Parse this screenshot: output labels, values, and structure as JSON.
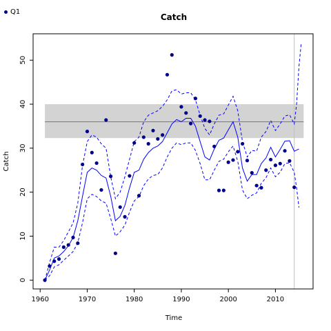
{
  "chart_data": {
    "type": "scatter",
    "title": "Catch",
    "xlabel": "Time",
    "ylabel": "Catch",
    "xlim": [
      1958.5,
      2018
    ],
    "ylim": [
      -2,
      56
    ],
    "x_ticks": [
      1960,
      1970,
      1980,
      1990,
      2000,
      2010
    ],
    "y_ticks": [
      0,
      10,
      20,
      30,
      40,
      50
    ],
    "grid": false,
    "legend": {
      "placement": "top-left",
      "entries": [
        "Q1"
      ]
    },
    "colors": {
      "points": "#00008b",
      "fit": "#0000ff",
      "band": "#d3d3d3",
      "mean_line": "#808080",
      "vline": "#c0c0c0"
    },
    "reference_band": {
      "x": [
        1961,
        2016
      ],
      "y_low": 32.3,
      "y_high": 40,
      "mean": 36
    },
    "vertical_line_x": 2014,
    "series": [
      {
        "name": "Q1",
        "style": "points",
        "points": [
          [
            1961,
            0
          ],
          [
            1962,
            3.2
          ],
          [
            1963,
            4.3
          ],
          [
            1964,
            4.8
          ],
          [
            1965,
            7.5
          ],
          [
            1966,
            8.0
          ],
          [
            1967,
            9.7
          ],
          [
            1968,
            8.4
          ],
          [
            1969,
            26.3
          ],
          [
            1970,
            33.8
          ],
          [
            1971,
            29.0
          ],
          [
            1972,
            26.6
          ],
          [
            1973,
            20.5
          ],
          [
            1974,
            36.4
          ],
          [
            1975,
            23.6
          ],
          [
            1976,
            6.1
          ],
          [
            1977,
            16.6
          ],
          [
            1978,
            14.4
          ],
          [
            1979,
            23.7
          ],
          [
            1980,
            31.2
          ],
          [
            1981,
            19.2
          ],
          [
            1982,
            32.5
          ],
          [
            1983,
            31.0
          ],
          [
            1984,
            34.0
          ],
          [
            1985,
            32.1
          ],
          [
            1986,
            33.0
          ],
          [
            1987,
            46.7
          ],
          [
            1988,
            51.2
          ],
          [
            1990,
            39.4
          ],
          [
            1991,
            38.0
          ],
          [
            1992,
            35.6
          ],
          [
            1993,
            41.3
          ],
          [
            1994,
            37.3
          ],
          [
            1995,
            36.4
          ],
          [
            1996,
            36.1
          ],
          [
            1997,
            30.4
          ],
          [
            1998,
            20.4
          ],
          [
            1999,
            20.4
          ],
          [
            2000,
            26.8
          ],
          [
            2001,
            27.3
          ],
          [
            2002,
            29.2
          ],
          [
            2003,
            31.0
          ],
          [
            2004,
            27.2
          ],
          [
            2005,
            24.4
          ],
          [
            2006,
            21.5
          ],
          [
            2007,
            21.0
          ],
          [
            2008,
            25.0
          ],
          [
            2009,
            27.4
          ],
          [
            2010,
            26.1
          ],
          [
            2011,
            26.5
          ],
          [
            2012,
            29.4
          ],
          [
            2013,
            27.1
          ],
          [
            2014,
            21.1
          ]
        ]
      },
      {
        "style": "fit",
        "points": [
          [
            1961,
            0
          ],
          [
            1962,
            2.3
          ],
          [
            1963,
            5.0
          ],
          [
            1964,
            5.5
          ],
          [
            1965,
            6.5
          ],
          [
            1966,
            7.8
          ],
          [
            1967,
            9.7
          ],
          [
            1968,
            13.5
          ],
          [
            1969,
            19.0
          ],
          [
            1970,
            24.5
          ],
          [
            1971,
            25.5
          ],
          [
            1972,
            25.0
          ],
          [
            1973,
            23.8
          ],
          [
            1974,
            23.2
          ],
          [
            1975,
            19.0
          ],
          [
            1976,
            13.5
          ],
          [
            1977,
            14.5
          ],
          [
            1978,
            17.0
          ],
          [
            1979,
            21.0
          ],
          [
            1980,
            24.5
          ],
          [
            1981,
            25.0
          ],
          [
            1982,
            27.5
          ],
          [
            1983,
            29.0
          ],
          [
            1984,
            30.0
          ],
          [
            1985,
            30.5
          ],
          [
            1986,
            31.5
          ],
          [
            1987,
            33.5
          ],
          [
            1988,
            35.5
          ],
          [
            1989,
            36.5
          ],
          [
            1990,
            36.0
          ],
          [
            1991,
            36.8
          ],
          [
            1992,
            36.8
          ],
          [
            1993,
            35.0
          ],
          [
            1994,
            31.5
          ],
          [
            1995,
            28.0
          ],
          [
            1996,
            27.3
          ],
          [
            1997,
            29.8
          ],
          [
            1998,
            31.8
          ],
          [
            1999,
            32.3
          ],
          [
            2000,
            34.2
          ],
          [
            2001,
            36.0
          ],
          [
            2002,
            32.5
          ],
          [
            2003,
            25.5
          ],
          [
            2004,
            22.5
          ],
          [
            2005,
            24.0
          ],
          [
            2006,
            24.0
          ],
          [
            2007,
            26.5
          ],
          [
            2008,
            27.8
          ],
          [
            2009,
            30.2
          ],
          [
            2010,
            28.0
          ],
          [
            2011,
            29.7
          ],
          [
            2012,
            31.6
          ],
          [
            2013,
            31.7
          ],
          [
            2014,
            29.3
          ],
          [
            2015,
            29.8
          ]
        ]
      },
      {
        "style": "upper-interval",
        "points": [
          [
            1961,
            0
          ],
          [
            1962,
            4.0
          ],
          [
            1963,
            7.5
          ],
          [
            1964,
            7.5
          ],
          [
            1965,
            9.0
          ],
          [
            1966,
            11.0
          ],
          [
            1967,
            13.0
          ],
          [
            1968,
            17.5
          ],
          [
            1969,
            26.0
          ],
          [
            1970,
            31.5
          ],
          [
            1971,
            33.0
          ],
          [
            1972,
            32.5
          ],
          [
            1973,
            31.0
          ],
          [
            1974,
            30.0
          ],
          [
            1975,
            23.5
          ],
          [
            1976,
            18.5
          ],
          [
            1977,
            20.0
          ],
          [
            1978,
            23.5
          ],
          [
            1979,
            27.5
          ],
          [
            1980,
            31.5
          ],
          [
            1981,
            32.5
          ],
          [
            1982,
            36.0
          ],
          [
            1983,
            37.5
          ],
          [
            1984,
            38.0
          ],
          [
            1985,
            38.5
          ],
          [
            1986,
            39.5
          ],
          [
            1987,
            41.0
          ],
          [
            1988,
            43.0
          ],
          [
            1989,
            43.3
          ],
          [
            1990,
            42.3
          ],
          [
            1991,
            42.6
          ],
          [
            1992,
            42.6
          ],
          [
            1993,
            41.0
          ],
          [
            1994,
            37.5
          ],
          [
            1995,
            34.5
          ],
          [
            1996,
            33.0
          ],
          [
            1997,
            35.5
          ],
          [
            1998,
            37.5
          ],
          [
            1999,
            37.8
          ],
          [
            2000,
            39.8
          ],
          [
            2001,
            41.8
          ],
          [
            2002,
            38.5
          ],
          [
            2003,
            31.5
          ],
          [
            2004,
            28.0
          ],
          [
            2005,
            29.5
          ],
          [
            2006,
            29.3
          ],
          [
            2007,
            32.5
          ],
          [
            2008,
            33.8
          ],
          [
            2009,
            36.3
          ],
          [
            2010,
            34.0
          ],
          [
            2011,
            35.5
          ],
          [
            2012,
            37.3
          ],
          [
            2013,
            37.6
          ],
          [
            2014,
            35.5
          ],
          [
            2014.5,
            40.0
          ],
          [
            2015,
            48.5
          ],
          [
            2015.5,
            54.0
          ]
        ]
      },
      {
        "style": "lower-interval",
        "points": [
          [
            1961,
            0
          ],
          [
            1962,
            1.0
          ],
          [
            1963,
            3.0
          ],
          [
            1964,
            3.5
          ],
          [
            1965,
            4.5
          ],
          [
            1966,
            5.5
          ],
          [
            1967,
            6.5
          ],
          [
            1968,
            8.5
          ],
          [
            1969,
            13.0
          ],
          [
            1970,
            18.5
          ],
          [
            1971,
            19.5
          ],
          [
            1972,
            19.0
          ],
          [
            1973,
            18.0
          ],
          [
            1974,
            17.5
          ],
          [
            1975,
            14.0
          ],
          [
            1976,
            10.0
          ],
          [
            1977,
            11.0
          ],
          [
            1978,
            12.5
          ],
          [
            1979,
            15.5
          ],
          [
            1980,
            18.0
          ],
          [
            1981,
            19.0
          ],
          [
            1982,
            21.5
          ],
          [
            1983,
            23.0
          ],
          [
            1984,
            23.8
          ],
          [
            1985,
            24.0
          ],
          [
            1986,
            25.5
          ],
          [
            1987,
            28.0
          ],
          [
            1988,
            30.0
          ],
          [
            1989,
            31.2
          ],
          [
            1990,
            30.8
          ],
          [
            1991,
            31.2
          ],
          [
            1992,
            31.2
          ],
          [
            1993,
            29.5
          ],
          [
            1994,
            26.5
          ],
          [
            1995,
            22.8
          ],
          [
            1996,
            22.8
          ],
          [
            1997,
            25.0
          ],
          [
            1998,
            27.0
          ],
          [
            1999,
            27.5
          ],
          [
            2000,
            29.2
          ],
          [
            2001,
            30.5
          ],
          [
            2002,
            27.0
          ],
          [
            2003,
            20.5
          ],
          [
            2004,
            18.5
          ],
          [
            2005,
            19.3
          ],
          [
            2006,
            19.8
          ],
          [
            2007,
            22.0
          ],
          [
            2008,
            23.3
          ],
          [
            2009,
            25.5
          ],
          [
            2010,
            23.5
          ],
          [
            2011,
            24.5
          ],
          [
            2012,
            26.5
          ],
          [
            2013,
            26.7
          ],
          [
            2014,
            24.5
          ],
          [
            2014.5,
            21.0
          ],
          [
            2015,
            16.5
          ]
        ]
      }
    ]
  }
}
